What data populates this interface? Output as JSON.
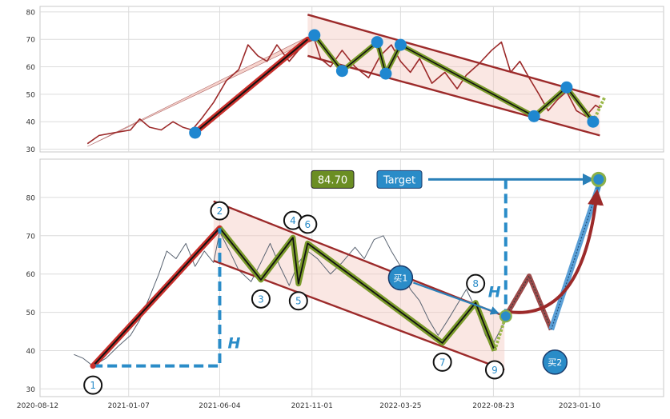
{
  "chart_data": [
    {
      "type": "line",
      "panel": "overview",
      "ylim": [
        29,
        82
      ],
      "yticks": [
        30,
        40,
        50,
        60,
        70,
        80
      ],
      "grid": true,
      "series": [
        {
          "color": "#9c2a2a",
          "points": [
            [
              "2020-11-01",
              32
            ],
            [
              "2020-11-20",
              35
            ],
            [
              "2020-12-15",
              36
            ],
            [
              "2021-01-10",
              37
            ],
            [
              "2021-01-25",
              41
            ],
            [
              "2021-02-10",
              38
            ],
            [
              "2021-03-01",
              37
            ],
            [
              "2021-03-20",
              40
            ],
            [
              "2021-04-05",
              38
            ],
            [
              "2021-04-20",
              37
            ],
            [
              "2021-05-05",
              41
            ],
            [
              "2021-05-25",
              47
            ],
            [
              "2021-06-15",
              55
            ],
            [
              "2021-07-05",
              59
            ],
            [
              "2021-07-20",
              68
            ],
            [
              "2021-08-05",
              64
            ],
            [
              "2021-08-20",
              62
            ],
            [
              "2021-09-05",
              68
            ],
            [
              "2021-09-25",
              62
            ],
            [
              "2021-10-10",
              66
            ],
            [
              "2021-10-25",
              69
            ],
            [
              "2021-11-05",
              70
            ],
            [
              "2021-11-15",
              63
            ],
            [
              "2021-12-01",
              60
            ],
            [
              "2021-12-20",
              66
            ],
            [
              "2022-01-10",
              60
            ],
            [
              "2022-02-01",
              56
            ],
            [
              "2022-02-20",
              64
            ],
            [
              "2022-03-10",
              68
            ],
            [
              "2022-03-25",
              62
            ],
            [
              "2022-04-10",
              58
            ],
            [
              "2022-04-25",
              63
            ],
            [
              "2022-05-15",
              54
            ],
            [
              "2022-06-05",
              58
            ],
            [
              "2022-06-25",
              52
            ],
            [
              "2022-07-10",
              57
            ],
            [
              "2022-07-30",
              61
            ],
            [
              "2022-08-20",
              66
            ],
            [
              "2022-09-05",
              69
            ],
            [
              "2022-09-20",
              58
            ],
            [
              "2022-10-05",
              62
            ],
            [
              "2022-10-20",
              56
            ],
            [
              "2022-11-05",
              50
            ],
            [
              "2022-11-20",
              44
            ],
            [
              "2022-12-05",
              48
            ],
            [
              "2022-12-20",
              51
            ],
            [
              "2023-01-05",
              44
            ],
            [
              "2023-01-20",
              42
            ],
            [
              "2023-02-05",
              46
            ],
            [
              "2023-02-12",
              45
            ]
          ]
        }
      ],
      "trend_line": {
        "color": "#c9302c",
        "from": [
          "2021-04-25",
          36
        ],
        "to": [
          "2021-10-25",
          70
        ]
      },
      "channel": {
        "upper": [
          [
            "2021-10-25",
            79
          ],
          [
            "2023-02-12",
            49
          ]
        ],
        "lower": [
          [
            "2021-10-25",
            64
          ],
          [
            "2023-02-12",
            35
          ]
        ]
      },
      "zigzag": [
        [
          "2021-11-05",
          71.5
        ],
        [
          "2021-12-20",
          58.5
        ],
        [
          "2022-02-15",
          69
        ],
        [
          "2022-03-01",
          57.5
        ],
        [
          "2022-03-25",
          68
        ],
        [
          "2022-10-28",
          42
        ],
        [
          "2022-12-20",
          52.5
        ],
        [
          "2023-02-01",
          40
        ],
        [
          "2023-02-20",
          49
        ]
      ],
      "pivot_markers": [
        [
          "2021-04-25",
          36
        ],
        [
          "2021-11-05",
          71.5
        ],
        [
          "2021-12-20",
          58.5
        ],
        [
          "2022-02-15",
          69
        ],
        [
          "2022-03-01",
          57.5
        ],
        [
          "2022-03-25",
          68
        ],
        [
          "2022-10-28",
          42
        ],
        [
          "2022-12-20",
          52.5
        ],
        [
          "2023-02-01",
          40
        ]
      ],
      "leader": {
        "from": [
          "2020-11-01",
          31
        ],
        "to": [
          "2021-10-25",
          70
        ]
      }
    },
    {
      "type": "line",
      "panel": "pattern",
      "ylim": [
        28,
        90
      ],
      "yticks": [
        30,
        40,
        50,
        60,
        70,
        80
      ],
      "xticks": [
        "2020-08-12",
        "2021-01-07",
        "2021-06-04",
        "2021-11-01",
        "2022-03-25",
        "2022-08-23",
        "2023-01-10"
      ],
      "grid": true,
      "series": [
        {
          "color": "#5a6472",
          "points": [
            [
              "2020-10-10",
              39
            ],
            [
              "2020-10-25",
              38
            ],
            [
              "2020-11-10",
              36
            ],
            [
              "2020-12-01",
              38
            ],
            [
              "2020-12-20",
              41
            ],
            [
              "2021-01-10",
              44
            ],
            [
              "2021-01-25",
              48
            ],
            [
              "2021-02-10",
              54
            ],
            [
              "2021-02-25",
              60
            ],
            [
              "2021-03-10",
              66
            ],
            [
              "2021-03-25",
              64
            ],
            [
              "2021-04-10",
              68
            ],
            [
              "2021-04-25",
              62
            ],
            [
              "2021-05-10",
              66
            ],
            [
              "2021-05-25",
              63
            ],
            [
              "2021-06-04",
              71
            ],
            [
              "2021-06-20",
              66
            ],
            [
              "2021-07-05",
              61
            ],
            [
              "2021-07-25",
              58
            ],
            [
              "2021-08-10",
              63
            ],
            [
              "2021-08-25",
              68
            ],
            [
              "2021-09-10",
              62
            ],
            [
              "2021-09-25",
              57
            ],
            [
              "2021-10-10",
              63
            ],
            [
              "2021-10-25",
              66
            ],
            [
              "2021-11-10",
              64
            ],
            [
              "2021-12-01",
              60
            ],
            [
              "2021-12-20",
              63
            ],
            [
              "2022-01-10",
              67
            ],
            [
              "2022-01-25",
              64
            ],
            [
              "2022-02-10",
              69
            ],
            [
              "2022-02-25",
              70
            ],
            [
              "2022-03-10",
              66
            ],
            [
              "2022-03-25",
              62
            ],
            [
              "2022-04-10",
              56
            ],
            [
              "2022-04-25",
              53
            ],
            [
              "2022-05-10",
              48
            ],
            [
              "2022-05-25",
              44
            ],
            [
              "2022-06-10",
              48
            ],
            [
              "2022-06-25",
              52
            ],
            [
              "2022-07-10",
              56
            ],
            [
              "2022-07-25",
              51
            ],
            [
              "2022-08-10",
              44
            ],
            [
              "2022-08-20",
              41
            ],
            [
              "2022-09-05",
              46
            ],
            [
              "2022-09-15",
              49
            ]
          ]
        }
      ],
      "trend_line": {
        "color": "#c9302c",
        "from": [
          "2020-11-10",
          36
        ],
        "to": [
          "2021-06-04",
          72
        ]
      },
      "channel": {
        "upper": [
          [
            "2021-05-25",
            79
          ],
          [
            "2022-09-10",
            49
          ]
        ],
        "lower": [
          [
            "2021-05-25",
            63.5
          ],
          [
            "2022-09-10",
            35
          ]
        ]
      },
      "zigzag": [
        [
          "2021-06-04",
          72
        ],
        [
          "2021-08-10",
          58.5
        ],
        [
          "2021-10-01",
          69.5
        ],
        [
          "2021-10-10",
          57.5
        ],
        [
          "2021-10-25",
          68
        ],
        [
          "2022-06-01",
          42
        ],
        [
          "2022-07-25",
          52.5
        ],
        [
          "2022-08-25",
          40
        ],
        [
          "2022-09-12",
          49
        ]
      ],
      "points": [
        {
          "n": "1",
          "date": "2020-11-10",
          "y": 36,
          "label_y": 31
        },
        {
          "n": "2",
          "date": "2021-06-04",
          "y": 72,
          "label_y": 76.5
        },
        {
          "n": "3",
          "date": "2021-08-10",
          "y": 58.5,
          "label_y": 53.5
        },
        {
          "n": "4",
          "date": "2021-10-01",
          "y": 69.5,
          "label_y": 74
        },
        {
          "n": "5",
          "date": "2021-10-10",
          "y": 57.5,
          "label_y": 53
        },
        {
          "n": "6",
          "date": "2021-10-25",
          "y": 68,
          "label_y": 73
        },
        {
          "n": "7",
          "date": "2022-06-01",
          "y": 42,
          "label_y": 37
        },
        {
          "n": "8",
          "date": "2022-07-25",
          "y": 52.5,
          "label_y": 57.5
        },
        {
          "n": "9",
          "date": "2022-08-25",
          "y": 40,
          "label_y": 35
        }
      ],
      "height_guides": {
        "label": "H",
        "color": "#2a8cc8"
      },
      "target": {
        "label": "Target",
        "value": "84.70",
        "y": 84.7,
        "date": "2023-02-10"
      },
      "buy_points": [
        {
          "label": "买1",
          "date": "2022-03-25",
          "y": 59
        },
        {
          "label": "买2",
          "date": "2022-12-01",
          "y": 37
        }
      ],
      "projection": [
        [
          "2022-09-12",
          49
        ],
        [
          "2022-10-20",
          59.5
        ],
        [
          "2022-11-25",
          45.5
        ],
        [
          "2023-02-10",
          84.7
        ]
      ],
      "entry_point": {
        "date": "2022-09-12",
        "y": 49
      }
    }
  ]
}
